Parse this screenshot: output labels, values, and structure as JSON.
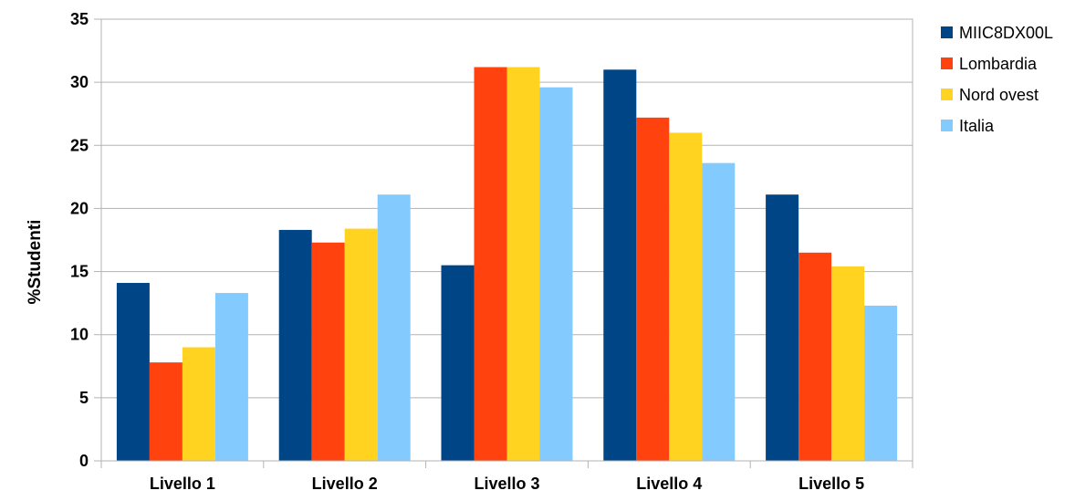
{
  "chart_data": {
    "type": "bar",
    "title": "",
    "xlabel": "",
    "ylabel": "%Studenti",
    "ylim": [
      0,
      35
    ],
    "yticks": [
      0,
      5,
      10,
      15,
      20,
      25,
      30,
      35
    ],
    "grid": true,
    "legend_position": "right-top",
    "categories": [
      "Livello 1",
      "Livello 2",
      "Livello 3",
      "Livello 4",
      "Livello 5"
    ],
    "series": [
      {
        "name": "MIIC8DX00L",
        "color": "#004586",
        "values": [
          14.1,
          18.3,
          15.5,
          31.0,
          21.1
        ]
      },
      {
        "name": "Lombardia",
        "color": "#ff420e",
        "values": [
          7.8,
          17.3,
          31.2,
          27.2,
          16.5
        ]
      },
      {
        "name": "Nord ovest",
        "color": "#ffd320",
        "values": [
          9.0,
          18.4,
          31.2,
          26.0,
          15.4
        ]
      },
      {
        "name": "Italia",
        "color": "#83caff",
        "values": [
          13.3,
          21.1,
          29.6,
          23.6,
          12.3
        ]
      }
    ]
  }
}
